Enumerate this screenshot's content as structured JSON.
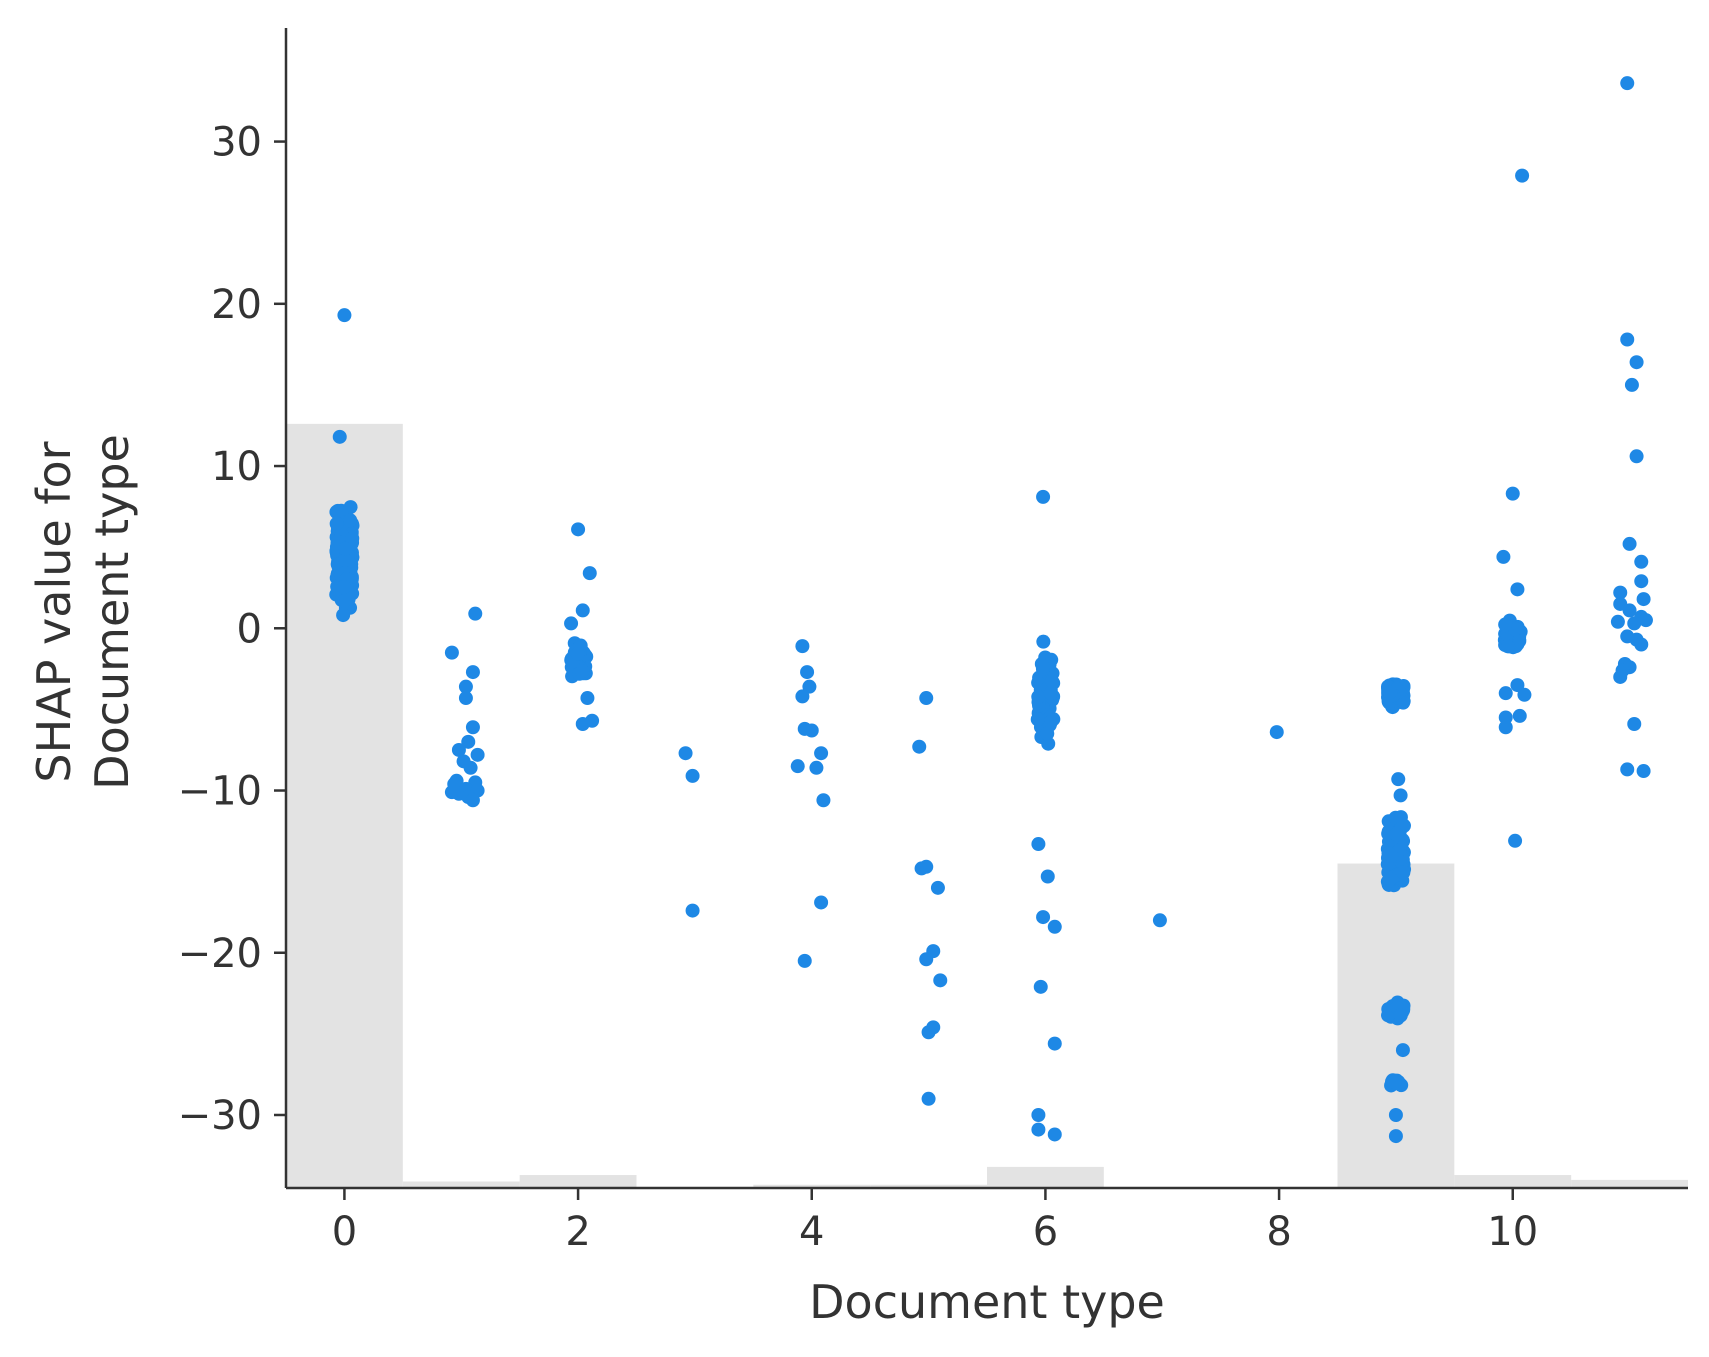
{
  "chart_data": {
    "type": "scatter",
    "xlabel": "Document type",
    "ylabel_lines": [
      "SHAP value for",
      "Document type"
    ],
    "xlim": [
      -0.5,
      11.5
    ],
    "ylim": [
      -34.5,
      37
    ],
    "xticks": [
      0,
      2,
      4,
      6,
      8,
      10
    ],
    "yticks": [
      -30,
      -20,
      -10,
      0,
      10,
      20,
      30
    ],
    "ytick_labels": [
      "−30",
      "−20",
      "−10",
      "0",
      "10",
      "20",
      "30"
    ],
    "grid": false,
    "colors": {
      "points": "#1e88e5",
      "histogram": "#e3e3e3",
      "axes": "#333333"
    },
    "histogram": [
      {
        "x": 0,
        "top": 12.6
      },
      {
        "x": 1,
        "top": -34.1
      },
      {
        "x": 2,
        "top": -33.7
      },
      {
        "x": 3,
        "top": -34.5
      },
      {
        "x": 4,
        "top": -34.3
      },
      {
        "x": 5,
        "top": -34.3
      },
      {
        "x": 6,
        "top": -33.2
      },
      {
        "x": 7,
        "top": -34.5
      },
      {
        "x": 8,
        "top": -34.5
      },
      {
        "x": 9,
        "top": -14.5
      },
      {
        "x": 10,
        "top": -33.7
      },
      {
        "x": 11,
        "top": -34.0
      }
    ],
    "clusters": [
      {
        "x": 0,
        "spread": 0.07,
        "n": 260,
        "ymin": -2.0,
        "ymax": 10.0,
        "center": 4.5,
        "sd": 3.0
      },
      {
        "x": 6,
        "spread": 0.07,
        "n": 70,
        "ymin": -11,
        "ymax": 1.2,
        "center": -4.0,
        "sd": 3.4
      },
      {
        "x": 9,
        "spread": 0.07,
        "n": 120,
        "ymin": -5.5,
        "ymax": -3.0,
        "center": -4.2,
        "sd": 0.8
      },
      {
        "x": 9,
        "spread": 0.07,
        "n": 160,
        "ymin": -18.5,
        "ymax": -11.0,
        "center": -14.0,
        "sd": 2.0
      },
      {
        "x": 9,
        "spread": 0.07,
        "n": 45,
        "ymin": -24.5,
        "ymax": -22.5,
        "center": -23.5,
        "sd": 0.6
      },
      {
        "x": 9,
        "spread": 0.05,
        "n": 12,
        "ymin": -28.5,
        "ymax": -27.5,
        "center": -28.0,
        "sd": 0.4
      },
      {
        "x": 2,
        "spread": 0.07,
        "n": 40,
        "ymin": -4.5,
        "ymax": 0.0,
        "center": -2.0,
        "sd": 1.2
      },
      {
        "x": 10,
        "spread": 0.07,
        "n": 40,
        "ymin": -3.0,
        "ymax": 1.5,
        "center": -0.5,
        "sd": 1.2
      }
    ],
    "points": [
      {
        "x": 0.0,
        "y": 19.3
      },
      {
        "x": -0.04,
        "y": 11.8
      },
      {
        "x": 0.92,
        "y": -1.5
      },
      {
        "x": 1.12,
        "y": 0.9
      },
      {
        "x": 1.1,
        "y": -2.7
      },
      {
        "x": 1.04,
        "y": -3.6
      },
      {
        "x": 1.04,
        "y": -4.3
      },
      {
        "x": 1.1,
        "y": -6.1
      },
      {
        "x": 1.06,
        "y": -7.0
      },
      {
        "x": 0.98,
        "y": -7.5
      },
      {
        "x": 1.14,
        "y": -7.8
      },
      {
        "x": 1.02,
        "y": -8.2
      },
      {
        "x": 1.08,
        "y": -8.6
      },
      {
        "x": 0.96,
        "y": -9.4
      },
      {
        "x": 1.12,
        "y": -9.5
      },
      {
        "x": 0.94,
        "y": -9.6
      },
      {
        "x": 1.04,
        "y": -9.9
      },
      {
        "x": 1.14,
        "y": -10.0
      },
      {
        "x": 0.98,
        "y": -10.2
      },
      {
        "x": 1.06,
        "y": -10.4
      },
      {
        "x": 1.1,
        "y": -10.6
      },
      {
        "x": 0.92,
        "y": -10.1
      },
      {
        "x": 2.0,
        "y": 6.1
      },
      {
        "x": 2.1,
        "y": 3.4
      },
      {
        "x": 2.04,
        "y": 1.1
      },
      {
        "x": 1.94,
        "y": 0.3
      },
      {
        "x": 2.08,
        "y": -4.3
      },
      {
        "x": 2.12,
        "y": -5.7
      },
      {
        "x": 2.04,
        "y": -5.9
      },
      {
        "x": 2.92,
        "y": -7.7
      },
      {
        "x": 2.98,
        "y": -9.1
      },
      {
        "x": 2.98,
        "y": -17.4
      },
      {
        "x": 3.92,
        "y": -1.1
      },
      {
        "x": 3.96,
        "y": -2.7
      },
      {
        "x": 3.98,
        "y": -3.6
      },
      {
        "x": 3.92,
        "y": -4.2
      },
      {
        "x": 3.94,
        "y": -6.2
      },
      {
        "x": 4.0,
        "y": -6.3
      },
      {
        "x": 4.08,
        "y": -7.7
      },
      {
        "x": 3.88,
        "y": -8.5
      },
      {
        "x": 4.04,
        "y": -8.6
      },
      {
        "x": 4.1,
        "y": -10.6
      },
      {
        "x": 4.08,
        "y": -16.9
      },
      {
        "x": 3.94,
        "y": -20.5
      },
      {
        "x": 4.98,
        "y": -4.3
      },
      {
        "x": 4.92,
        "y": -7.3
      },
      {
        "x": 4.94,
        "y": -14.8
      },
      {
        "x": 4.98,
        "y": -14.7
      },
      {
        "x": 5.08,
        "y": -16.0
      },
      {
        "x": 5.04,
        "y": -19.9
      },
      {
        "x": 4.98,
        "y": -20.4
      },
      {
        "x": 5.1,
        "y": -21.7
      },
      {
        "x": 5.04,
        "y": -24.6
      },
      {
        "x": 5.0,
        "y": -24.9
      },
      {
        "x": 5.0,
        "y": -29.0
      },
      {
        "x": 5.98,
        "y": 8.1
      },
      {
        "x": 5.94,
        "y": -13.3
      },
      {
        "x": 6.02,
        "y": -15.3
      },
      {
        "x": 5.98,
        "y": -17.8
      },
      {
        "x": 6.08,
        "y": -18.4
      },
      {
        "x": 5.96,
        "y": -22.1
      },
      {
        "x": 6.08,
        "y": -25.6
      },
      {
        "x": 5.94,
        "y": -30.0
      },
      {
        "x": 5.94,
        "y": -30.9
      },
      {
        "x": 6.08,
        "y": -31.2
      },
      {
        "x": 6.98,
        "y": -18.0
      },
      {
        "x": 7.98,
        "y": -6.4
      },
      {
        "x": 9.02,
        "y": -9.3
      },
      {
        "x": 9.04,
        "y": -10.3
      },
      {
        "x": 9.06,
        "y": -26.0
      },
      {
        "x": 9.0,
        "y": -30.0
      },
      {
        "x": 9.0,
        "y": -31.3
      },
      {
        "x": 9.92,
        "y": 4.4
      },
      {
        "x": 10.0,
        "y": 8.3
      },
      {
        "x": 10.08,
        "y": 27.9
      },
      {
        "x": 10.04,
        "y": 2.4
      },
      {
        "x": 9.94,
        "y": -4.0
      },
      {
        "x": 10.04,
        "y": -3.5
      },
      {
        "x": 10.1,
        "y": -4.1
      },
      {
        "x": 9.94,
        "y": -5.5
      },
      {
        "x": 10.06,
        "y": -5.4
      },
      {
        "x": 9.94,
        "y": -6.1
      },
      {
        "x": 10.02,
        "y": -13.1
      },
      {
        "x": 10.98,
        "y": 33.6
      },
      {
        "x": 10.98,
        "y": 17.8
      },
      {
        "x": 11.06,
        "y": 16.4
      },
      {
        "x": 11.02,
        "y": 15.0
      },
      {
        "x": 11.06,
        "y": 10.6
      },
      {
        "x": 11.0,
        "y": 5.2
      },
      {
        "x": 11.1,
        "y": 4.1
      },
      {
        "x": 11.1,
        "y": 2.9
      },
      {
        "x": 10.92,
        "y": 2.2
      },
      {
        "x": 11.12,
        "y": 1.8
      },
      {
        "x": 10.92,
        "y": 1.5
      },
      {
        "x": 11.0,
        "y": 1.1
      },
      {
        "x": 11.1,
        "y": 0.7
      },
      {
        "x": 10.9,
        "y": 0.4
      },
      {
        "x": 11.04,
        "y": 0.3
      },
      {
        "x": 11.14,
        "y": 0.5
      },
      {
        "x": 10.98,
        "y": -0.5
      },
      {
        "x": 11.06,
        "y": -0.7
      },
      {
        "x": 11.1,
        "y": -1.0
      },
      {
        "x": 10.96,
        "y": -2.2
      },
      {
        "x": 11.0,
        "y": -2.4
      },
      {
        "x": 10.94,
        "y": -2.6
      },
      {
        "x": 10.92,
        "y": -3.0
      },
      {
        "x": 11.04,
        "y": -5.9
      },
      {
        "x": 10.98,
        "y": -8.7
      },
      {
        "x": 11.12,
        "y": -8.8
      }
    ]
  }
}
